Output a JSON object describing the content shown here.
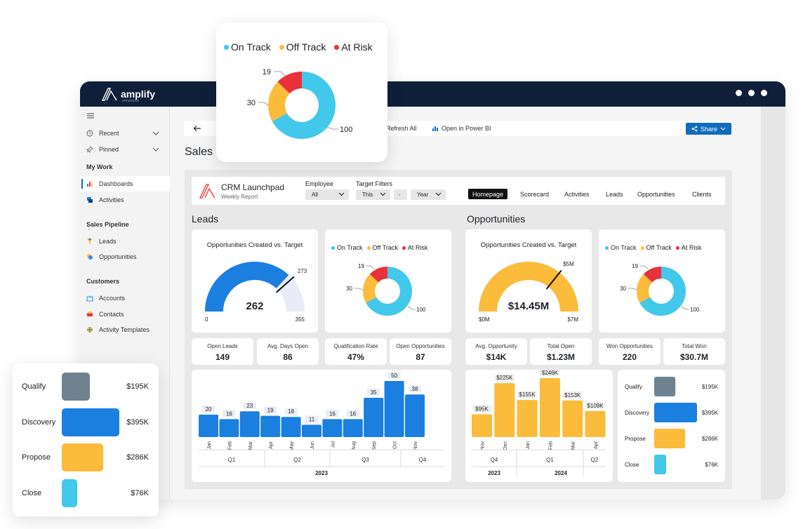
{
  "brand": {
    "name": "amplify",
    "sub": "solutions"
  },
  "sidebar": {
    "items": [
      {
        "label": "Recent",
        "icon": "clock-icon"
      },
      {
        "label": "Pinned",
        "icon": "pin-icon"
      }
    ],
    "my_work_header": "My Work",
    "my_work": [
      {
        "label": "Dashboards",
        "icon": "dashboard-icon"
      },
      {
        "label": "Activities",
        "icon": "activities-icon"
      }
    ],
    "sales_header": "Sales Pipeline",
    "sales": [
      {
        "label": "Leads",
        "icon": "leads-icon"
      },
      {
        "label": "Opportunities",
        "icon": "opportunities-icon"
      }
    ],
    "customers_header": "Customers",
    "customers": [
      {
        "label": "Accounts",
        "icon": "accounts-icon"
      },
      {
        "label": "Contacts",
        "icon": "contacts-icon"
      },
      {
        "label": "Activity Templates",
        "icon": "templates-icon"
      }
    ]
  },
  "toolbar": {
    "refresh": "Refresh All",
    "open_pbi": "Open in Power BI",
    "share": "Share"
  },
  "page_title": "Sales",
  "report": {
    "title": "CRM Launchpad",
    "subtitle": "Weekly Report",
    "employee_label": "Employee",
    "employee_value": "All",
    "target_label": "Target Filters",
    "target_value_1": "This",
    "target_value_2": "-",
    "target_value_3": "Year",
    "nav": [
      "Homepage",
      "Scorecard",
      "Activities",
      "Leads",
      "Opportunities",
      "Clients"
    ]
  },
  "leads": {
    "title": "Leads",
    "gauge": {
      "title": "Opportunities Created vs. Target",
      "value": 262,
      "value_label": "262",
      "target": 273,
      "target_label": "273",
      "min_label": "0",
      "max": 355,
      "max_label": "355"
    },
    "donut": {
      "legend": [
        "On Track",
        "Off Track",
        "At Risk"
      ],
      "values": [
        100,
        30,
        19
      ],
      "labels": [
        "100",
        "30",
        "19"
      ]
    },
    "kpis": [
      {
        "label": "Open Leads",
        "value": "149"
      },
      {
        "label": "Avg. Days Open",
        "value": "86"
      },
      {
        "label": "Qualification Rate",
        "value": "47%"
      },
      {
        "label": "Open Opportunities",
        "value": "87"
      }
    ],
    "bar_chart": {
      "months": [
        "Jan",
        "Feb",
        "Mar",
        "Apr",
        "May",
        "Jun",
        "Jul",
        "Aug",
        "Sep",
        "Oct",
        "Nov"
      ],
      "values": [
        20,
        16,
        23,
        19,
        18,
        11,
        16,
        16,
        35,
        50,
        38
      ],
      "quarters": [
        "Q1",
        "Q2",
        "Q3",
        "Q4"
      ],
      "year": "2023"
    }
  },
  "opportunities": {
    "title": "Opportunities",
    "gauge": {
      "title": "Opportunities Created vs. Target",
      "value": 14.45,
      "value_label": "$14.45M",
      "target": 5,
      "target_label": "$5M",
      "min_label": "$0M",
      "max": 7,
      "max_label": "$7M"
    },
    "donut": {
      "legend": [
        "On Track",
        "Off Track",
        "At Risk"
      ],
      "values": [
        100,
        30,
        19
      ],
      "labels": [
        "100",
        "30",
        "19"
      ]
    },
    "kpis": [
      {
        "label": "Avg. Opportunity",
        "value": "$14K"
      },
      {
        "label": "Total Open",
        "value": "$1.23M"
      },
      {
        "label": "Won Opportunities",
        "value": "220"
      },
      {
        "label": "Total Won",
        "value": "$30.7M"
      }
    ],
    "bar_chart": {
      "months": [
        "Nov",
        "Dec",
        "Jan",
        "Feb",
        "Mar",
        "Apr"
      ],
      "values": [
        95,
        225,
        155,
        246,
        153,
        109
      ],
      "labels": [
        "$95K",
        "$225K",
        "$155K",
        "$246K",
        "$153K",
        "$109K"
      ],
      "quarters": [
        "Q4",
        "Q1",
        "Q2"
      ],
      "years": [
        "2023",
        "2024"
      ]
    },
    "funnel": {
      "stages": [
        "Qualify",
        "Discovery",
        "Propose",
        "Close"
      ],
      "values": [
        195,
        395,
        286,
        76
      ],
      "labels": [
        "$195K",
        "$395K",
        "$286K",
        "$76K"
      ],
      "colors": [
        "#6e8290",
        "#1a7fde",
        "#fbbb3b",
        "#41c8ea"
      ]
    }
  },
  "float_donut": {
    "legend": [
      "On Track",
      "Off Track",
      "At Risk"
    ],
    "values": [
      100,
      30,
      19
    ],
    "labels": [
      "100",
      "30",
      "19"
    ]
  },
  "colors": {
    "on_track": "#41c8ea",
    "off_track": "#fbbb3b",
    "at_risk": "#e8313b",
    "bar_blue": "#1a7fde",
    "bar_yellow": "#fbbb3b",
    "nav_dark": "#0f1f3a",
    "accent": "#0f6cbd"
  },
  "chart_data": [
    {
      "type": "pie",
      "categories": [
        "On Track",
        "Off Track",
        "At Risk"
      ],
      "values": [
        100,
        30,
        19
      ]
    },
    {
      "type": "bar",
      "categories": [
        "Jan",
        "Feb",
        "Mar",
        "Apr",
        "May",
        "Jun",
        "Jul",
        "Aug",
        "Sep",
        "Oct",
        "Nov"
      ],
      "values": [
        20,
        16,
        23,
        19,
        18,
        11,
        16,
        16,
        35,
        50,
        38
      ]
    },
    {
      "type": "bar",
      "categories": [
        "Nov",
        "Dec",
        "Jan",
        "Feb",
        "Mar",
        "Apr"
      ],
      "values": [
        95,
        225,
        155,
        246,
        153,
        109
      ]
    },
    {
      "type": "bar",
      "categories": [
        "Qualify",
        "Discovery",
        "Propose",
        "Close"
      ],
      "values": [
        195,
        395,
        286,
        76
      ]
    }
  ]
}
